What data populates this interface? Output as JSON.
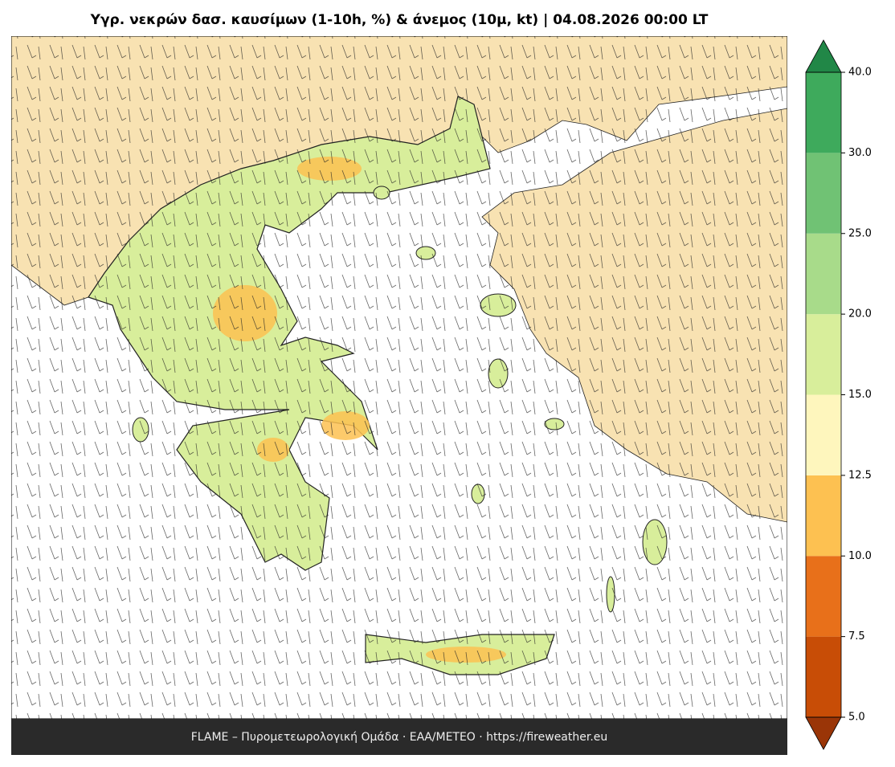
{
  "title": "Υγρ. νεκρών δασ. καυσίμων (1-10h, %) & άνεμος (10μ, kt)  |  04.08.2026 00:00 LT",
  "footer": "FLAME – Πυρομετεωρολογική Ομάδα · ΕΑΑ/METEO · https://fireweather.eu",
  "colorbar": {
    "levels": [
      5,
      7.5,
      10,
      12.5,
      15,
      20,
      25,
      30,
      40
    ],
    "colors": [
      "#c84d06",
      "#e8701a",
      "#fdc151",
      "#fef6bd",
      "#d8ee9b",
      "#a8db8a",
      "#70c274",
      "#3eaa5c"
    ],
    "under_color": "#9a3507",
    "over_color": "#218747",
    "ticks": [
      {
        "value": 5,
        "label": "5.0"
      },
      {
        "value": 7.5,
        "label": "7.5"
      },
      {
        "value": 10,
        "label": "10.0"
      },
      {
        "value": 12.5,
        "label": "12.5"
      },
      {
        "value": 15,
        "label": "15.0"
      },
      {
        "value": 20,
        "label": "20.0"
      },
      {
        "value": 25,
        "label": "25.0"
      },
      {
        "value": 30,
        "label": "30.0"
      },
      {
        "value": 40,
        "label": "40.0"
      }
    ]
  }
}
